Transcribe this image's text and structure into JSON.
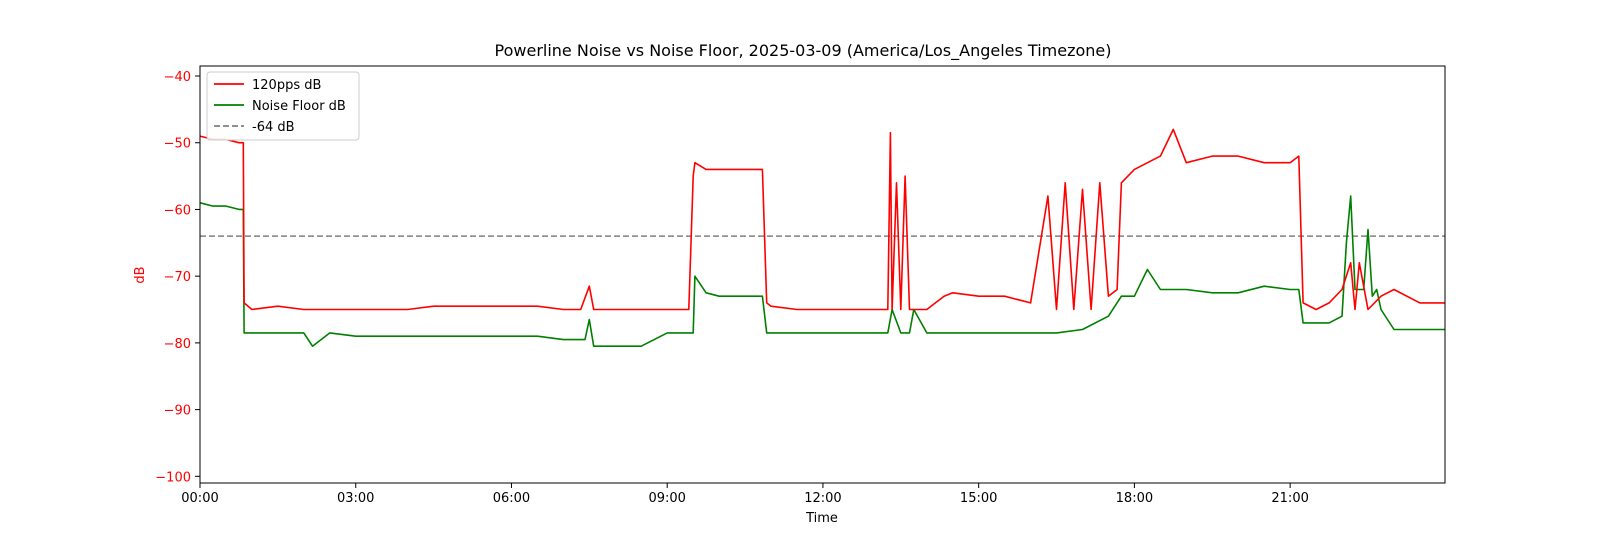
{
  "chart_data": {
    "type": "line",
    "title": "Powerline Noise vs Noise Floor, 2025-03-09 (America/Los_Angeles Timezone)",
    "xlabel": "Time",
    "ylabel": "dB",
    "xlim": [
      "00:00",
      "23:59"
    ],
    "ylim": [
      -101,
      -38.5
    ],
    "xticks": [
      "00:00",
      "03:00",
      "06:00",
      "09:00",
      "12:00",
      "15:00",
      "18:00",
      "21:00"
    ],
    "yticks": [
      -40,
      -50,
      -60,
      -70,
      -80,
      -90,
      -100
    ],
    "grid": false,
    "legend": {
      "position": "top-left"
    },
    "colors": {
      "series_120pps": "#ff0000",
      "noise_floor": "#008000",
      "threshold": "#808080",
      "ylabel": "#ff0000",
      "ytick_labels": "#ff0000"
    },
    "series": [
      {
        "name": "120pps dB",
        "x": [
          "00:00",
          "00:15",
          "00:30",
          "00:45",
          "00:50",
          "00:51",
          "01:00",
          "01:30",
          "02:00",
          "02:30",
          "03:00",
          "03:30",
          "04:00",
          "04:30",
          "05:00",
          "05:30",
          "06:00",
          "06:30",
          "07:00",
          "07:20",
          "07:30",
          "07:35",
          "07:45",
          "08:00",
          "08:30",
          "09:00",
          "09:25",
          "09:30",
          "09:32",
          "09:45",
          "10:00",
          "10:30",
          "10:50",
          "10:55",
          "11:00",
          "11:30",
          "12:00",
          "12:30",
          "13:00",
          "13:15",
          "13:18",
          "13:20",
          "13:25",
          "13:30",
          "13:35",
          "13:40",
          "13:45",
          "14:00",
          "14:10",
          "14:20",
          "14:30",
          "15:00",
          "15:30",
          "16:00",
          "16:20",
          "16:30",
          "16:40",
          "16:50",
          "17:00",
          "17:10",
          "17:20",
          "17:30",
          "17:40",
          "17:45",
          "18:00",
          "18:30",
          "18:45",
          "19:00",
          "19:30",
          "20:00",
          "20:30",
          "21:00",
          "21:10",
          "21:15",
          "21:30",
          "21:45",
          "22:00",
          "22:10",
          "22:15",
          "22:20",
          "22:30",
          "22:45",
          "23:00",
          "23:30",
          "23:59"
        ],
        "values": [
          -49,
          -49.5,
          -49.5,
          -50,
          -50,
          -74,
          -75,
          -74.5,
          -75,
          -75,
          -75,
          -75,
          -75,
          -74.5,
          -74.5,
          -74.5,
          -74.5,
          -74.5,
          -75,
          -75,
          -71.5,
          -75,
          -75,
          -75,
          -75,
          -75,
          -75,
          -55,
          -53,
          -54,
          -54,
          -54,
          -54,
          -74,
          -74.5,
          -75,
          -75,
          -75,
          -75,
          -75,
          -48.5,
          -75,
          -56,
          -75,
          -55,
          -75,
          -75,
          -75,
          -74,
          -73,
          -72.5,
          -73,
          -73,
          -74,
          -58,
          -75,
          -56,
          -75,
          -57,
          -75,
          -56,
          -73,
          -72,
          -56,
          -54,
          -52,
          -48,
          -53,
          -52,
          -52,
          -53,
          -53,
          -52,
          -74,
          -75,
          -74,
          -72,
          -68,
          -75,
          -68,
          -75,
          -73,
          -72,
          -74,
          -74
        ]
      },
      {
        "name": "Noise Floor dB",
        "x": [
          "00:00",
          "00:15",
          "00:30",
          "00:45",
          "00:50",
          "00:51",
          "01:00",
          "01:30",
          "02:00",
          "02:10",
          "02:30",
          "03:00",
          "03:30",
          "04:00",
          "04:30",
          "05:00",
          "05:30",
          "06:00",
          "06:30",
          "07:00",
          "07:25",
          "07:30",
          "07:35",
          "07:45",
          "08:00",
          "08:30",
          "09:00",
          "09:30",
          "09:32",
          "09:45",
          "10:00",
          "10:30",
          "10:50",
          "10:55",
          "11:00",
          "11:30",
          "12:00",
          "12:30",
          "13:00",
          "13:15",
          "13:20",
          "13:30",
          "13:40",
          "13:45",
          "14:00",
          "14:30",
          "15:00",
          "15:30",
          "16:00",
          "16:30",
          "17:00",
          "17:30",
          "17:45",
          "18:00",
          "18:15",
          "18:30",
          "19:00",
          "19:30",
          "20:00",
          "20:30",
          "21:00",
          "21:10",
          "21:15",
          "21:30",
          "21:45",
          "22:00",
          "22:05",
          "22:10",
          "22:15",
          "22:20",
          "22:25",
          "22:30",
          "22:35",
          "22:40",
          "22:45",
          "23:00",
          "23:30",
          "23:59"
        ],
        "values": [
          -59,
          -59.5,
          -59.5,
          -60,
          -60,
          -78.5,
          -78.5,
          -78.5,
          -78.5,
          -80.5,
          -78.5,
          -79,
          -79,
          -79,
          -79,
          -79,
          -79,
          -79,
          -79,
          -79.5,
          -79.5,
          -76.5,
          -80.5,
          -80.5,
          -80.5,
          -80.5,
          -78.5,
          -78.5,
          -70,
          -72.5,
          -73,
          -73,
          -73,
          -78.5,
          -78.5,
          -78.5,
          -78.5,
          -78.5,
          -78.5,
          -78.5,
          -75,
          -78.5,
          -78.5,
          -75,
          -78.5,
          -78.5,
          -78.5,
          -78.5,
          -78.5,
          -78.5,
          -78,
          -76,
          -73,
          -73,
          -69,
          -72,
          -72,
          -72.5,
          -72.5,
          -71.5,
          -72,
          -72,
          -77,
          -77,
          -77,
          -76,
          -65,
          -58,
          -72,
          -72,
          -72,
          -63,
          -73,
          -72,
          -75,
          -78,
          -78,
          -78
        ]
      },
      {
        "name": "-64 dB",
        "style": "dashed",
        "constant": -64
      }
    ]
  }
}
